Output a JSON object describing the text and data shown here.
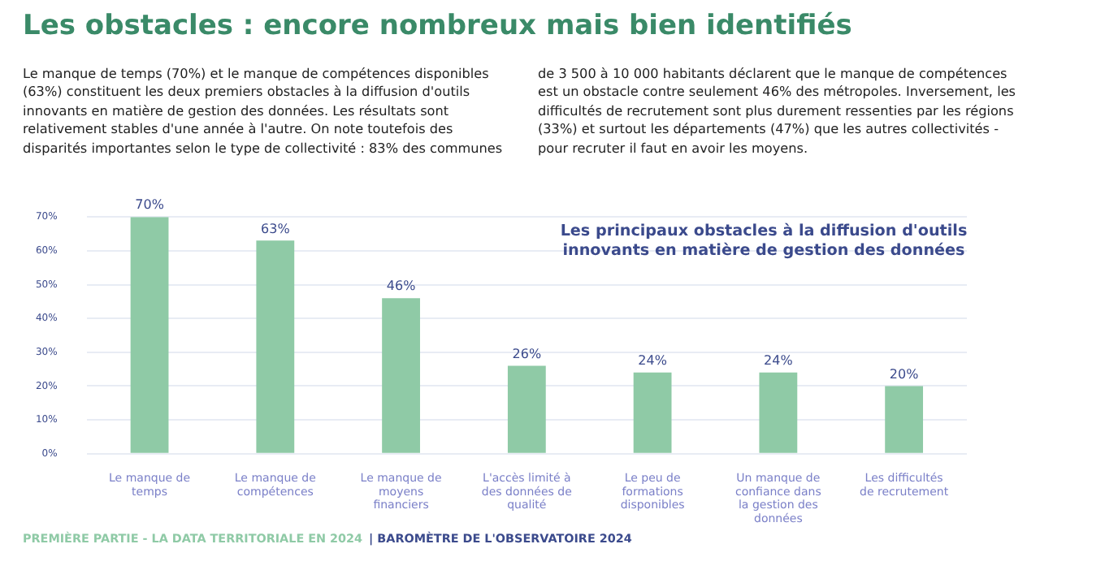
{
  "chart_data": {
    "type": "bar",
    "title": "Les obstacles : encore nombreux mais bien identifiés",
    "subtitle": "Le manque de temps (70%) et le manque de compétences disponibles (63%) constituent les deux premiers obstacles à la diffusion d'outils innovants en matière de gestion des données. Les résultats sont relativement stables d'une année à l'autre. On note toutefois des disparités importantes selon le type de collectivité : 83% des communes de 3 500 à 10 000 habitants déclarent que le manque de compétences est un obstacle contre seulement 46% des métropoles.  Inversement, les difficultés de recrutement sont plus durement ressenties par les régions (33%) et surtout les départements (47%) que les autres collectivités - pour recruter il faut en avoir les moyens.",
    "annotations": [
      "Les principaux obstacles à la diffusion d'outils innovants en matière de gestion des données",
      "PREMIÈRE PARTIE - LA DATA TERRITORIALE EN 2024",
      "| BAROMÈTRE DE L'OBSERVATOIRE 2024"
    ],
    "categories": [
      "Le manque de temps",
      "Le manque de compétences",
      "Le manque de moyens financiers",
      "L'accès limité à des données de qualité",
      "Le peu de formations disponibles",
      "Un manque de confiance dans la gestion des données",
      "Les difficultés de recrutement"
    ],
    "values": [
      70,
      63,
      46,
      26,
      24,
      24,
      20
    ],
    "value_labels": [
      "70%",
      "63%",
      "46%",
      "26%",
      "24%",
      "24%",
      "20%"
    ],
    "color": "#8fcaa6",
    "ylim": [
      0,
      70
    ],
    "yticks": [
      {
        "value": 0,
        "label": "0%"
      },
      {
        "value": 10,
        "label": "10%"
      },
      {
        "value": 20,
        "label": "20%"
      },
      {
        "value": 30,
        "label": "30%"
      },
      {
        "value": 40,
        "label": "40%"
      },
      {
        "value": 50,
        "label": "50%"
      },
      {
        "value": 60,
        "label": "60%"
      },
      {
        "value": 70,
        "label": "70%"
      }
    ],
    "grid": "y"
  }
}
